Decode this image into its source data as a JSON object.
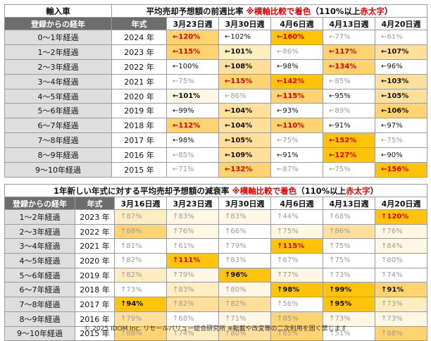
{
  "top": {
    "title_left": "輸入車",
    "title_main": "平均売却予想額の前週比率",
    "title_note": "※横軸比較で着色",
    "title_paren_open": "（110%以上",
    "title_red": "赤太字",
    "title_paren_close": "）",
    "header_age": "登録からの経年",
    "header_year": "年式",
    "dates": [
      "3月23日週",
      "3月30日週",
      "4月6日週",
      "4月13日週",
      "4月20日週"
    ],
    "rows": [
      {
        "age": "0～1年経過",
        "year": "2024 年",
        "cells": [
          {
            "text": "←120%",
            "style": "red",
            "level": 4
          },
          {
            "text": "←102%",
            "style": "normal",
            "level": 0
          },
          {
            "text": "←160%",
            "style": "red",
            "level": 5
          },
          {
            "text": "←77%",
            "style": "light",
            "level": 0
          },
          {
            "text": "←61%",
            "style": "light",
            "level": 0
          }
        ]
      },
      {
        "age": "1～2年経過",
        "year": "2023 年",
        "cells": [
          {
            "text": "←115%",
            "style": "red",
            "level": 4
          },
          {
            "text": "←101%",
            "style": "bold",
            "level": 2
          },
          {
            "text": "←86%",
            "style": "light",
            "level": 0
          },
          {
            "text": "←117%",
            "style": "red",
            "level": 4
          },
          {
            "text": "←107%",
            "style": "bold",
            "level": 3
          }
        ]
      },
      {
        "age": "2～3年経過",
        "year": "2022 年",
        "cells": [
          {
            "text": "←100%",
            "style": "normal",
            "level": 0
          },
          {
            "text": "←108%",
            "style": "bold",
            "level": 3
          },
          {
            "text": "←98%",
            "style": "normal",
            "level": 0
          },
          {
            "text": "←134%",
            "style": "red",
            "level": 4
          },
          {
            "text": "←96%",
            "style": "normal",
            "level": 0
          }
        ]
      },
      {
        "age": "3～4年経過",
        "year": "2021 年",
        "cells": [
          {
            "text": "←75%",
            "style": "light",
            "level": 0
          },
          {
            "text": "←115%",
            "style": "red",
            "level": 4
          },
          {
            "text": "←142%",
            "style": "red",
            "level": 5
          },
          {
            "text": "←85%",
            "style": "light",
            "level": 0
          },
          {
            "text": "←103%",
            "style": "bold",
            "level": 3
          }
        ]
      },
      {
        "age": "4～5年経過",
        "year": "2020 年",
        "cells": [
          {
            "text": "←101%",
            "style": "bold",
            "level": 1
          },
          {
            "text": "←86%",
            "style": "light",
            "level": 0
          },
          {
            "text": "←115%",
            "style": "red",
            "level": 4
          },
          {
            "text": "←95%",
            "style": "normal",
            "level": 0
          },
          {
            "text": "←105%",
            "style": "bold",
            "level": 3
          }
        ]
      },
      {
        "age": "5～6年経過",
        "year": "2019 年",
        "cells": [
          {
            "text": "←99%",
            "style": "normal",
            "level": 0
          },
          {
            "text": "←104%",
            "style": "bold",
            "level": 3
          },
          {
            "text": "←93%",
            "style": "normal",
            "level": 0
          },
          {
            "text": "←89%",
            "style": "light",
            "level": 0
          },
          {
            "text": "←106%",
            "style": "bold",
            "level": 4
          }
        ]
      },
      {
        "age": "6～7年経過",
        "year": "2018 年",
        "cells": [
          {
            "text": "←112%",
            "style": "red",
            "level": 4
          },
          {
            "text": "←104%",
            "style": "bold",
            "level": 3
          },
          {
            "text": "←110%",
            "style": "red",
            "level": 4
          },
          {
            "text": "←91%",
            "style": "normal",
            "level": 0
          },
          {
            "text": "←97%",
            "style": "normal",
            "level": 0
          }
        ]
      },
      {
        "age": "7～8年経過",
        "year": "2017 年",
        "cells": [
          {
            "text": "←98%",
            "style": "normal",
            "level": 0
          },
          {
            "text": "←105%",
            "style": "bold",
            "level": 3
          },
          {
            "text": "←75%",
            "style": "light",
            "level": 0
          },
          {
            "text": "←152%",
            "style": "red",
            "level": 5
          },
          {
            "text": "←75%",
            "style": "light",
            "level": 0
          }
        ]
      },
      {
        "age": "8～9年経過",
        "year": "2016 年",
        "cells": [
          {
            "text": "←85%",
            "style": "light",
            "level": 0
          },
          {
            "text": "←109%",
            "style": "bold",
            "level": 3
          },
          {
            "text": "←91%",
            "style": "normal",
            "level": 0
          },
          {
            "text": "←127%",
            "style": "red",
            "level": 5
          },
          {
            "text": "←90%",
            "style": "normal",
            "level": 0
          }
        ]
      },
      {
        "age": "9～10年経過",
        "year": "2015 年",
        "cells": [
          {
            "text": "←71%",
            "style": "light",
            "level": 0
          },
          {
            "text": "←132%",
            "style": "red",
            "level": 4
          },
          {
            "text": "←87%",
            "style": "light",
            "level": 0
          },
          {
            "text": "←75%",
            "style": "light",
            "level": 0
          },
          {
            "text": "←156%",
            "style": "red",
            "level": 5
          }
        ]
      }
    ]
  },
  "bottom": {
    "title_main": "1年新しい年式に対する平均売却予想額の減衰率",
    "title_note": "※横軸比較で着色",
    "title_paren_open": "（110%以上",
    "title_red": "赤太字",
    "title_paren_close": "）",
    "header_age": "登録からの経年",
    "header_year": "年式",
    "dates": [
      "3月16日週",
      "3月23日週",
      "3月30日週",
      "4月6日週",
      "4月13日週",
      "4月20日週"
    ],
    "rows": [
      {
        "age": "1～2年経過",
        "year": "2023 年",
        "cells": [
          {
            "text": "↑87%",
            "style": "light",
            "level": 2
          },
          {
            "text": "↑83%",
            "style": "light",
            "level": 1
          },
          {
            "text": "↑83%",
            "style": "light",
            "level": 1
          },
          {
            "text": "↑44%",
            "style": "light",
            "level": 0
          },
          {
            "text": "↑68%",
            "style": "light",
            "level": 0
          },
          {
            "text": "↑120%",
            "style": "red",
            "level": 5
          }
        ]
      },
      {
        "age": "2～3年経過",
        "year": "2022 年",
        "cells": [
          {
            "text": "↑88%",
            "style": "light",
            "level": 4
          },
          {
            "text": "↑76%",
            "style": "light",
            "level": 1
          },
          {
            "text": "↑66%",
            "style": "light",
            "level": 0
          },
          {
            "text": "↑75%",
            "style": "light",
            "level": 1
          },
          {
            "text": "↑86%",
            "style": "light",
            "level": 3
          },
          {
            "text": "↑76%",
            "style": "light",
            "level": 1
          }
        ]
      },
      {
        "age": "3～4年経過",
        "year": "2021 年",
        "cells": [
          {
            "text": "↑81%",
            "style": "light",
            "level": 0
          },
          {
            "text": "↑61%",
            "style": "light",
            "level": 0
          },
          {
            "text": "↑79%",
            "style": "light",
            "level": 0
          },
          {
            "text": "↑115%",
            "style": "red",
            "level": 5
          },
          {
            "text": "↑75%",
            "style": "light",
            "level": 0
          },
          {
            "text": "↑84%",
            "style": "light",
            "level": 1
          }
        ]
      },
      {
        "age": "4～5年経過",
        "year": "2020 年",
        "cells": [
          {
            "text": "↑82%",
            "style": "light",
            "level": 0
          },
          {
            "text": "↑111%",
            "style": "red",
            "level": 5
          },
          {
            "text": "↑83%",
            "style": "light",
            "level": 0
          },
          {
            "text": "↑67%",
            "style": "light",
            "level": 0
          },
          {
            "text": "↑75%",
            "style": "light",
            "level": 0
          },
          {
            "text": "↑80%",
            "style": "light",
            "level": 0
          }
        ]
      },
      {
        "age": "5～6年経過",
        "year": "2019 年",
        "cells": [
          {
            "text": "↑82%",
            "style": "light",
            "level": 2
          },
          {
            "text": "↑79%",
            "style": "light",
            "level": 1
          },
          {
            "text": "↑96%",
            "style": "bold",
            "level": 5
          },
          {
            "text": "↑77%",
            "style": "light",
            "level": 1
          },
          {
            "text": "↑73%",
            "style": "light",
            "level": 0
          },
          {
            "text": "↑74%",
            "style": "light",
            "level": 0
          }
        ]
      },
      {
        "age": "6～7年経過",
        "year": "2018 年",
        "cells": [
          {
            "text": "↑73%",
            "style": "light",
            "level": 0
          },
          {
            "text": "↑83%",
            "style": "light",
            "level": 2
          },
          {
            "text": "↑80%",
            "style": "light",
            "level": 1
          },
          {
            "text": "↑98%",
            "style": "bold",
            "level": 5
          },
          {
            "text": "↑99%",
            "style": "bold",
            "level": 5
          },
          {
            "text": "↑91%",
            "style": "bold",
            "level": 4
          }
        ]
      },
      {
        "age": "7～8年経過",
        "year": "2017 年",
        "cells": [
          {
            "text": "↑94%",
            "style": "bold",
            "level": 5
          },
          {
            "text": "↑82%",
            "style": "light",
            "level": 3
          },
          {
            "text": "↑82%",
            "style": "light",
            "level": 3
          },
          {
            "text": "↑56%",
            "style": "light",
            "level": 0
          },
          {
            "text": "↑95%",
            "style": "bold",
            "level": 5
          },
          {
            "text": "↑73%",
            "style": "light",
            "level": 2
          }
        ]
      },
      {
        "age": "8～9年経過",
        "year": "2016 年",
        "cells": [
          {
            "text": "↑79%",
            "style": "light",
            "level": 3
          },
          {
            "text": "↑68%",
            "style": "light",
            "level": 0
          },
          {
            "text": "↑71%",
            "style": "light",
            "level": 1
          },
          {
            "text": "↑85%",
            "style": "light",
            "level": 4
          },
          {
            "text": "↑73%",
            "style": "light",
            "level": 1
          },
          {
            "text": "↑73%",
            "style": "light",
            "level": 1
          }
        ]
      },
      {
        "age": "9～10年経過",
        "year": "2015 年",
        "cells": [
          {
            "text": "↑88%",
            "style": "light",
            "level": 4
          },
          {
            "text": "↑74%",
            "style": "light",
            "level": 2
          },
          {
            "text": "↑80%",
            "style": "light",
            "level": 3
          },
          {
            "text": "↑85%",
            "style": "light",
            "level": 4
          },
          {
            "text": "↑51%",
            "style": "light",
            "level": 0
          },
          {
            "text": "↑88%",
            "style": "light",
            "level": 4
          }
        ]
      }
    ]
  },
  "footer": "© 2025 IDOM Inc. リセールバリュー総合研究所 ※転載や改変等の二次利用を固く禁じます"
}
